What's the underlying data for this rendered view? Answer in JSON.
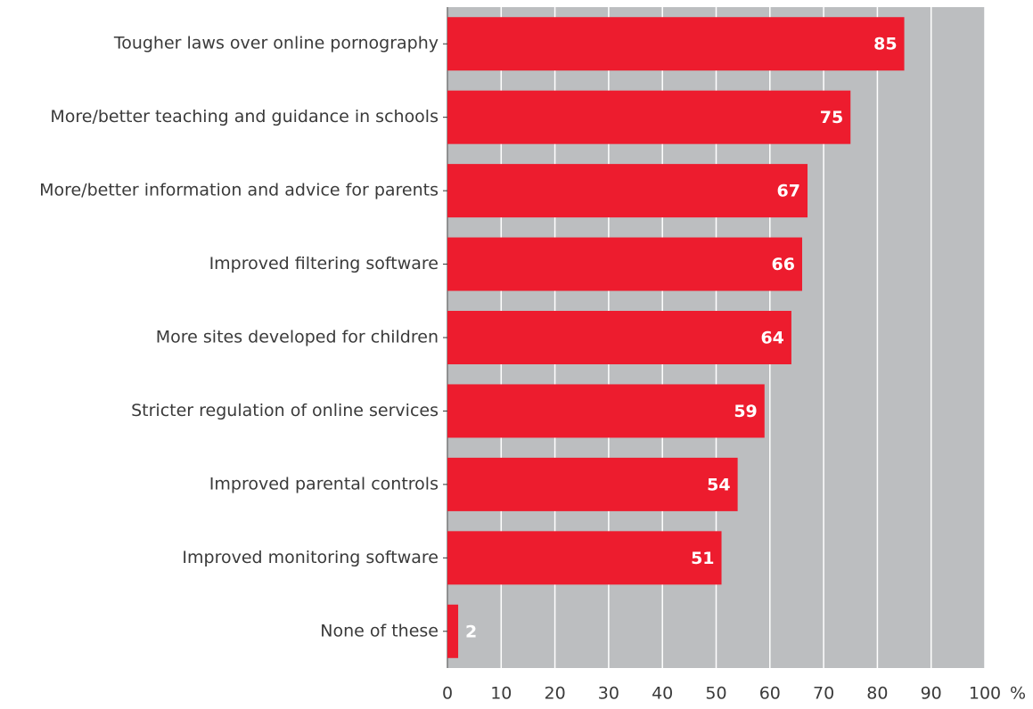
{
  "chart_data": {
    "type": "barh",
    "categories": [
      "Tougher laws over online pornography",
      "More/better teaching and guidance in schools",
      "More/better information and advice for parents",
      "Improved filtering software",
      "More sites developed for children",
      "Stricter regulation of online services",
      "Improved parental controls",
      "Improved monitoring software",
      "None of these"
    ],
    "values": [
      85,
      75,
      67,
      66,
      64,
      59,
      54,
      51,
      2
    ],
    "color": "#ed1c2e",
    "xlim": [
      0,
      100
    ],
    "xticks": [
      0,
      10,
      20,
      30,
      40,
      50,
      60,
      70,
      80,
      90,
      100
    ],
    "xlabel": "%",
    "grid": true
  }
}
